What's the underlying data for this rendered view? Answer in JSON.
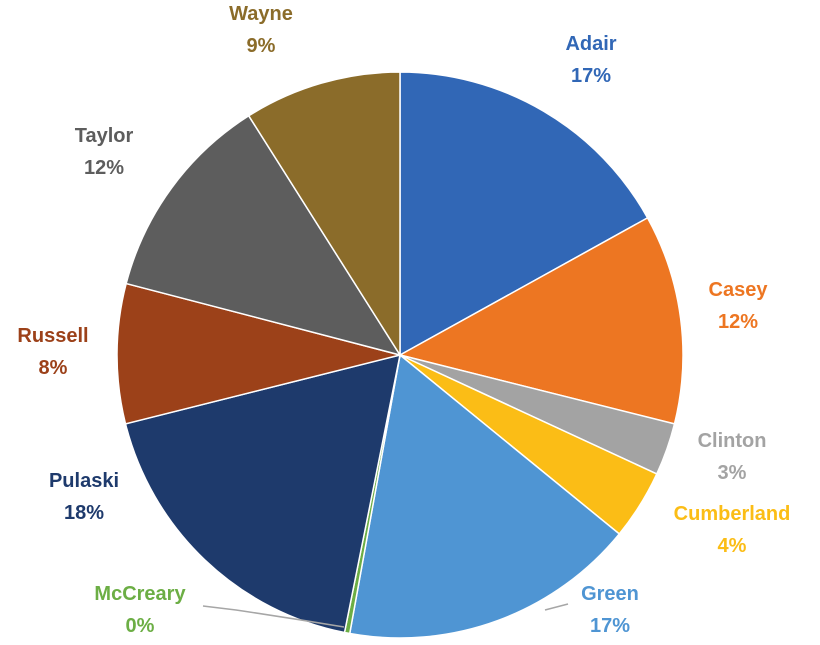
{
  "chart_data": {
    "type": "pie",
    "title": "",
    "start_angle_deg": 0,
    "direction": "clockwise",
    "legend": "none",
    "slices": [
      {
        "name": "Adair",
        "label": "17%",
        "value": 17,
        "color": "#3167b6"
      },
      {
        "name": "Casey",
        "label": "12%",
        "value": 12,
        "color": "#ed7622"
      },
      {
        "name": "Clinton",
        "label": "3%",
        "value": 3,
        "color": "#a3a3a3"
      },
      {
        "name": "Cumberland",
        "label": "4%",
        "value": 4,
        "color": "#fbbd16"
      },
      {
        "name": "Green",
        "label": "17%",
        "value": 17,
        "color": "#4f95d3"
      },
      {
        "name": "McCreary",
        "label": "0%",
        "value": 0.3,
        "color": "#6cae45"
      },
      {
        "name": "Pulaski",
        "label": "18%",
        "value": 18,
        "color": "#1e3a6c"
      },
      {
        "name": "Russell",
        "label": "8%",
        "value": 8,
        "color": "#9c4119"
      },
      {
        "name": "Taylor",
        "label": "12%",
        "value": 12,
        "color": "#5d5d5d"
      },
      {
        "name": "Wayne",
        "label": "9%",
        "value": 9,
        "color": "#8b6c2a"
      }
    ]
  }
}
